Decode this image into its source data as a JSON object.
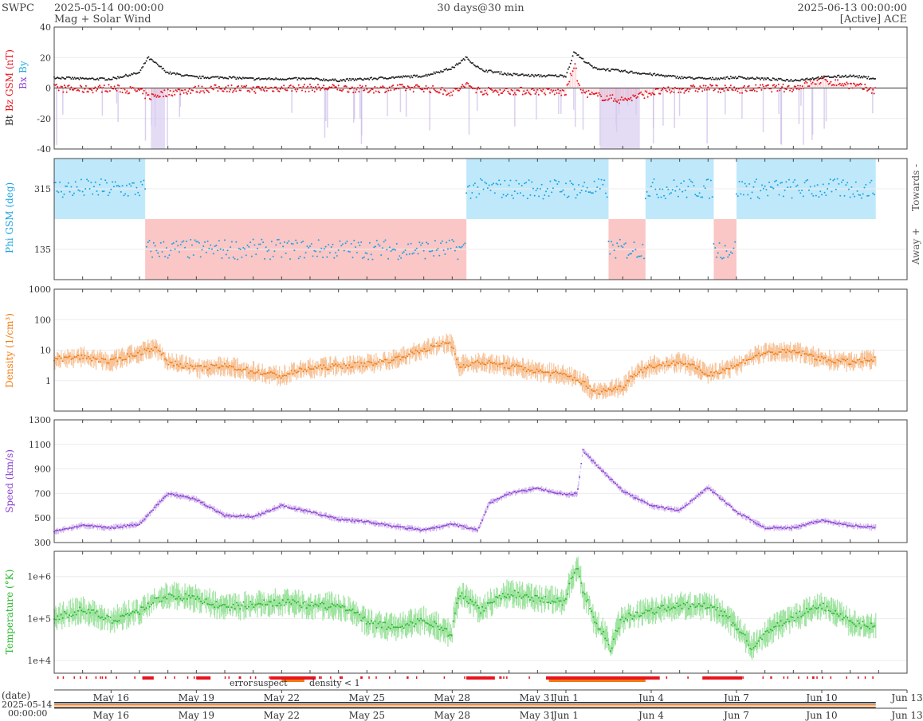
{
  "header": {
    "source": "SWPC",
    "start": "2025-05-14 00:00:00",
    "subtitle": "Mag + Solar Wind",
    "span": "30 days@30 min",
    "end": "2025-06-13 00:00:00",
    "spacecraft": "[Active] ACE"
  },
  "colors": {
    "bt": "#222222",
    "bz": "#e8141e",
    "bx": "#8a3fd1",
    "by": "#22aee6",
    "phi": "#1aa3e0",
    "toward_fill": "#bfe9fb",
    "away_fill": "#fbc6c6",
    "density": "#f07a10",
    "speed": "#8a3fd1",
    "temperature": "#28b82c",
    "error": "#e8141e",
    "suspect": "#e8c814",
    "density_lt1": "#f07a10"
  },
  "chart_data": [
    {
      "type": "line",
      "panel": "mag",
      "ylabel_parts": [
        "Bt",
        "Bz GSM (nT)",
        "Bx",
        "By"
      ],
      "ylim": [
        -40,
        40
      ],
      "yticks": [
        -40,
        -20,
        0,
        20,
        40
      ],
      "grid": true,
      "x_days": [
        0,
        1,
        2,
        3,
        3.3,
        4,
        5,
        6,
        7,
        8,
        9,
        10,
        11,
        12,
        13,
        14,
        14.5,
        15,
        16,
        17,
        18,
        18.3,
        18.5,
        19,
        20,
        21,
        22,
        23,
        24,
        25,
        26,
        27,
        28,
        29,
        30
      ],
      "series": [
        {
          "name": "Bt",
          "values": [
            7,
            6,
            6,
            10,
            20,
            10,
            7,
            7,
            6,
            6,
            6,
            5,
            6,
            7,
            8,
            13,
            20,
            12,
            9,
            8,
            8,
            24,
            20,
            13,
            11,
            9,
            7,
            6,
            7,
            6,
            5,
            7,
            8,
            6,
            6
          ]
        },
        {
          "name": "Bz",
          "values": [
            0,
            -1,
            0,
            -2,
            -6,
            -3,
            -1,
            0,
            -1,
            0,
            0,
            0,
            -1,
            0,
            0,
            -3,
            2,
            -2,
            -2,
            -2,
            -3,
            16,
            -2,
            -5,
            -8,
            -3,
            -1,
            0,
            -1,
            0,
            0,
            5,
            2,
            -2,
            0
          ]
        }
      ]
    },
    {
      "type": "scatter",
      "panel": "phi",
      "ylabel": "Phi GSM (deg)",
      "ylim": [
        45,
        405
      ],
      "yticks": [
        135,
        315
      ],
      "right_labels": [
        "Towards -",
        "Away +"
      ],
      "sector_bands": [
        {
          "from": 0,
          "to": 3.2,
          "sector": "toward"
        },
        {
          "from": 3.2,
          "to": 14.5,
          "sector": "away"
        },
        {
          "from": 14.5,
          "to": 19.5,
          "sector": "toward"
        },
        {
          "from": 19.5,
          "to": 20.8,
          "sector": "away"
        },
        {
          "from": 20.8,
          "to": 23.2,
          "sector": "toward"
        },
        {
          "from": 23.2,
          "to": 24.0,
          "sector": "away"
        },
        {
          "from": 24.0,
          "to": 28.9,
          "sector": "toward"
        }
      ]
    },
    {
      "type": "area",
      "panel": "density",
      "ylabel": "Density (1/cm³)",
      "scale": "log",
      "ylim": [
        0.1,
        1000
      ],
      "yticks": [
        "1",
        "10",
        "100",
        "1000"
      ],
      "x_days": [
        0,
        1,
        2,
        3,
        3.5,
        4,
        5,
        6,
        7,
        8,
        9,
        10,
        11,
        12,
        13,
        13.9,
        14.2,
        15,
        16,
        17,
        18,
        19,
        20,
        21,
        22,
        23,
        24,
        25,
        26,
        27,
        28,
        29
      ],
      "values": [
        5,
        6,
        4,
        8,
        12,
        4,
        2.5,
        3,
        2,
        1.4,
        2.5,
        3,
        3.5,
        5,
        10,
        18,
        3,
        4,
        3,
        2,
        1.5,
        0.4,
        0.6,
        3,
        4,
        1.5,
        3,
        8,
        9,
        5,
        4,
        5
      ]
    },
    {
      "type": "area",
      "panel": "speed",
      "ylabel": "Speed (km/s)",
      "ylim": [
        300,
        1300
      ],
      "yticks": [
        "300",
        "500",
        "700",
        "900",
        "1100",
        "1300"
      ],
      "x_days": [
        0,
        1,
        2,
        3,
        4,
        5,
        6,
        7,
        8,
        9,
        10,
        11,
        12,
        13,
        14,
        14.9,
        15.3,
        16,
        17,
        18,
        18.4,
        18.6,
        19,
        20,
        21,
        22,
        23,
        24,
        25,
        26,
        27,
        28,
        29
      ],
      "values": [
        390,
        440,
        420,
        450,
        700,
        650,
        520,
        510,
        600,
        550,
        490,
        470,
        430,
        400,
        450,
        400,
        620,
        700,
        740,
        690,
        700,
        1050,
        950,
        720,
        600,
        560,
        750,
        550,
        420,
        420,
        480,
        440,
        420
      ]
    },
    {
      "type": "area",
      "panel": "temperature",
      "ylabel": "Temperature (°K)",
      "scale": "log",
      "ylim": [
        5000,
        4000000
      ],
      "yticks": [
        "1e+4",
        "1e+5",
        "1e+6"
      ],
      "x_days": [
        0,
        1,
        2,
        3,
        4,
        5,
        6,
        7,
        8,
        9,
        10,
        11,
        12,
        13,
        14,
        14.3,
        15,
        16,
        17,
        18,
        18.4,
        18.6,
        19,
        19.6,
        20,
        21,
        22,
        23,
        24,
        24.5,
        25,
        26,
        27,
        28,
        29
      ],
      "values": [
        100000,
        160000,
        90000,
        150000,
        350000,
        300000,
        180000,
        220000,
        250000,
        200000,
        200000,
        80000,
        60000,
        90000,
        40000,
        350000,
        150000,
        400000,
        300000,
        250000,
        1500000,
        400000,
        80000,
        15000,
        100000,
        150000,
        200000,
        200000,
        60000,
        20000,
        40000,
        100000,
        200000,
        80000,
        60000
      ]
    }
  ],
  "quality": {
    "legend": [
      "error",
      "suspect",
      "density < 1"
    ],
    "error_days": [
      [
        3.1,
        3.5
      ],
      [
        5.0,
        5.5
      ],
      [
        7.6,
        9.2
      ],
      [
        14.5,
        15.5
      ],
      [
        17.3,
        21.3
      ],
      [
        22.8,
        24.2
      ]
    ],
    "density_days": [
      [
        8.0,
        8.8
      ],
      [
        17.4,
        20.8
      ]
    ]
  },
  "xaxis": {
    "dates": [
      "May 16",
      "May 19",
      "May 22",
      "May 25",
      "May 28",
      "May 31",
      "Jun 1",
      "Jun 4",
      "Jun 7",
      "Jun 10",
      "Jun 13"
    ],
    "date_days": [
      2,
      5,
      8,
      11,
      14,
      17,
      18,
      21,
      24,
      27,
      30
    ],
    "date_label": "(date)",
    "start_date": "2025-05-14",
    "start_time": "00:00:00"
  }
}
